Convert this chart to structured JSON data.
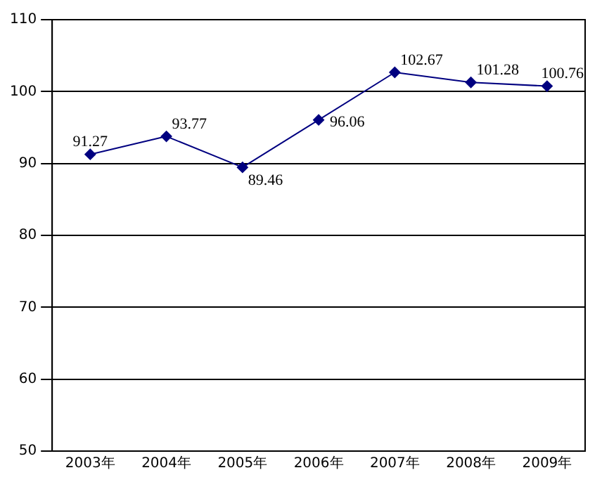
{
  "chart_data": {
    "type": "line",
    "categories": [
      "2003年",
      "2004年",
      "2005年",
      "2006年",
      "2007年",
      "2008年",
      "2009年"
    ],
    "series": [
      {
        "color": "#000080",
        "values": [
          91.27,
          93.77,
          89.46,
          96.06,
          102.67,
          101.28,
          100.76
        ]
      }
    ],
    "ylim": [
      50,
      110
    ],
    "yticks": [
      50,
      60,
      70,
      80,
      90,
      100,
      110
    ],
    "grid": "y",
    "legend": false,
    "marker": "diamond",
    "line_style": "solid",
    "data_labels": true
  }
}
